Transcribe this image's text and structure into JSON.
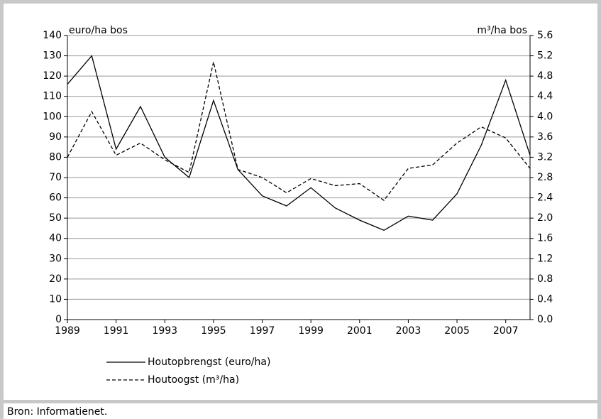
{
  "chart_data": {
    "type": "line",
    "y_label": "euro/ha bos",
    "y2_label": "m³/ha bos",
    "source": "Bron: Informatienet.",
    "x": [
      1989,
      1990,
      1991,
      1992,
      1993,
      1994,
      1995,
      1996,
      1997,
      1998,
      1999,
      2000,
      2001,
      2002,
      2003,
      2004,
      2005,
      2006,
      2007,
      2008
    ],
    "xlim": [
      1989,
      2008
    ],
    "xticks": [
      1989,
      1991,
      1993,
      1995,
      1997,
      1999,
      2001,
      2003,
      2005,
      2007
    ],
    "ylim": [
      0,
      140
    ],
    "yticks": [
      0,
      10,
      20,
      30,
      40,
      50,
      60,
      70,
      80,
      90,
      100,
      110,
      120,
      130,
      140
    ],
    "y2lim": [
      0,
      5.6
    ],
    "y2ticks": [
      {
        "value": 0,
        "label": "0.0"
      },
      0.4,
      0.8,
      1.2,
      1.6,
      {
        "value": 2,
        "label": "2.0"
      },
      2.4,
      2.8,
      3.2,
      3.6,
      {
        "value": 4,
        "label": "4.0"
      },
      4.4,
      4.8,
      5.2,
      5.6
    ],
    "grid": true,
    "series": [
      {
        "name": "Houtopbrengst (euro/ha)",
        "color": "#000000",
        "dash": "solid",
        "values": [
          116,
          130,
          84,
          105,
          80,
          70,
          108,
          74,
          61,
          56,
          65,
          55,
          49,
          44,
          51,
          49,
          62,
          86,
          118,
          81
        ]
      },
      {
        "name": "Houtoogst (m³/ha)",
        "color": "#000000",
        "dash": "dashed",
        "axis": "y2",
        "values": [
          3.2,
          4.1,
          3.24,
          3.48,
          3.15,
          2.9,
          5.08,
          2.96,
          2.8,
          2.5,
          2.78,
          2.64,
          2.68,
          2.35,
          2.98,
          3.05,
          3.48,
          3.8,
          3.58,
          2.98
        ]
      }
    ]
  }
}
